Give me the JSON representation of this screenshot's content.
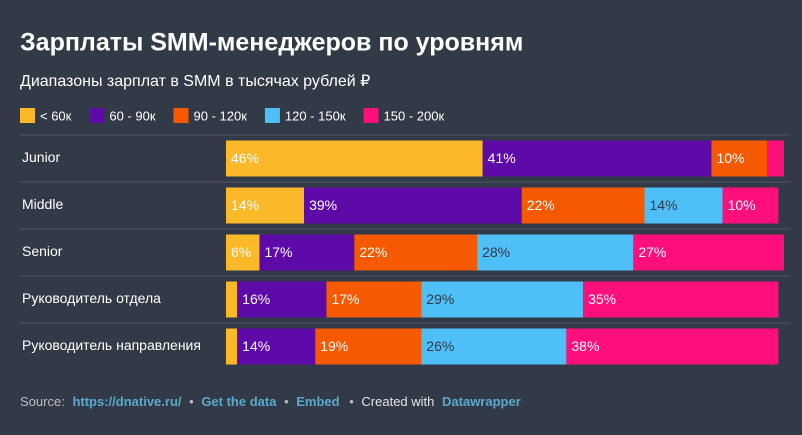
{
  "chart_data": {
    "type": "stacked-bar-horizontal",
    "title": "Зарплаты SMM-менеджеров по уровням",
    "subtitle": "Диапазоны зарплат в SMM в тысячах рублей ₽",
    "categories": [
      "Junior",
      "Middle",
      "Senior",
      "Руководитель отдела",
      "Руководитель направления"
    ],
    "series": [
      {
        "name": "< 60к",
        "color": "#fbb829",
        "values": [
          46,
          14,
          6,
          2,
          2
        ],
        "value_labels": [
          "46%",
          "14%",
          "6%",
          null,
          null
        ]
      },
      {
        "name": "60 - 90к",
        "color": "#5d0aa8",
        "values": [
          41,
          39,
          17,
          16,
          14
        ],
        "value_labels": [
          "41%",
          "39%",
          "17%",
          "16%",
          "14%"
        ]
      },
      {
        "name": "90 - 120к",
        "color": "#f55a00",
        "values": [
          10,
          22,
          22,
          17,
          19
        ],
        "value_labels": [
          "10%",
          "22%",
          "22%",
          "17%",
          "19%"
        ]
      },
      {
        "name": "120 - 150к",
        "color": "#4fc0f7",
        "values": [
          0,
          14,
          28,
          29,
          26
        ],
        "value_labels": [
          null,
          "14%",
          "28%",
          "29%",
          "26%"
        ]
      },
      {
        "name": "150 - 200к",
        "color": "#ff0f7b",
        "values": [
          3,
          10,
          27,
          35,
          38
        ],
        "value_labels": [
          null,
          "10%",
          "27%",
          "35%",
          "38%"
        ]
      }
    ]
  },
  "footer": {
    "source_label": "Source:",
    "source_link": "https://dnative.ru/",
    "separator": "•",
    "get_data": "Get the data",
    "embed": "Embed",
    "created_with": "Created with",
    "tool": "Datawrapper"
  }
}
